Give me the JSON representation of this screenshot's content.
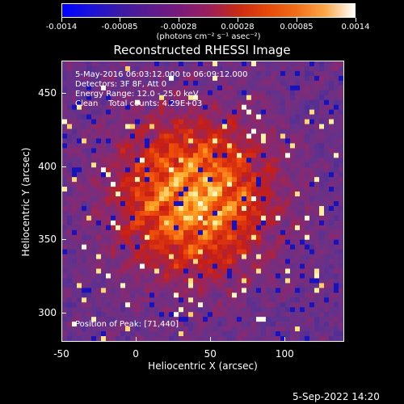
{
  "colorbar": {
    "tick_labels": [
      "-0.0014",
      "-0.00085",
      "-0.00028",
      "0.00028",
      "0.00085",
      "0.0014"
    ],
    "units": "(photons cm⁻² s⁻¹ asec⁻²)"
  },
  "plot": {
    "title": "Reconstructed RHESSI Image",
    "annotations": {
      "time_range": "5-May-2016 06:03:12.000 to 06:09:12.000",
      "detectors": "Detectors: 3F 8F, Att 0",
      "energy_range": "Energy Range: 12.0 - 25.0 keV",
      "clean_counts": "Clean    Total counts: 4.29E+03",
      "peak_position": "Position of Peak: [71,440]"
    },
    "xlabel": "Heliocentric X (arcsec)",
    "ylabel": "Heliocentric Y (arcsec)",
    "x_ticks": [
      "-50",
      "0",
      "50",
      "100"
    ],
    "y_ticks": [
      "300",
      "350",
      "400",
      "450"
    ]
  },
  "timestamp": "5-Sep-2022 14:20",
  "chart_data": {
    "type": "heatmap",
    "title": "Reconstructed RHESSI Image",
    "xlabel": "Heliocentric X (arcsec)",
    "ylabel": "Heliocentric Y (arcsec)",
    "xlim": [
      -50,
      140
    ],
    "ylim": [
      280,
      472
    ],
    "colorbar_range": [
      -0.0014,
      0.0014
    ],
    "colormap": "blue-purple-red-yellow-white",
    "peak_position": [
      71,
      440
    ]
  }
}
